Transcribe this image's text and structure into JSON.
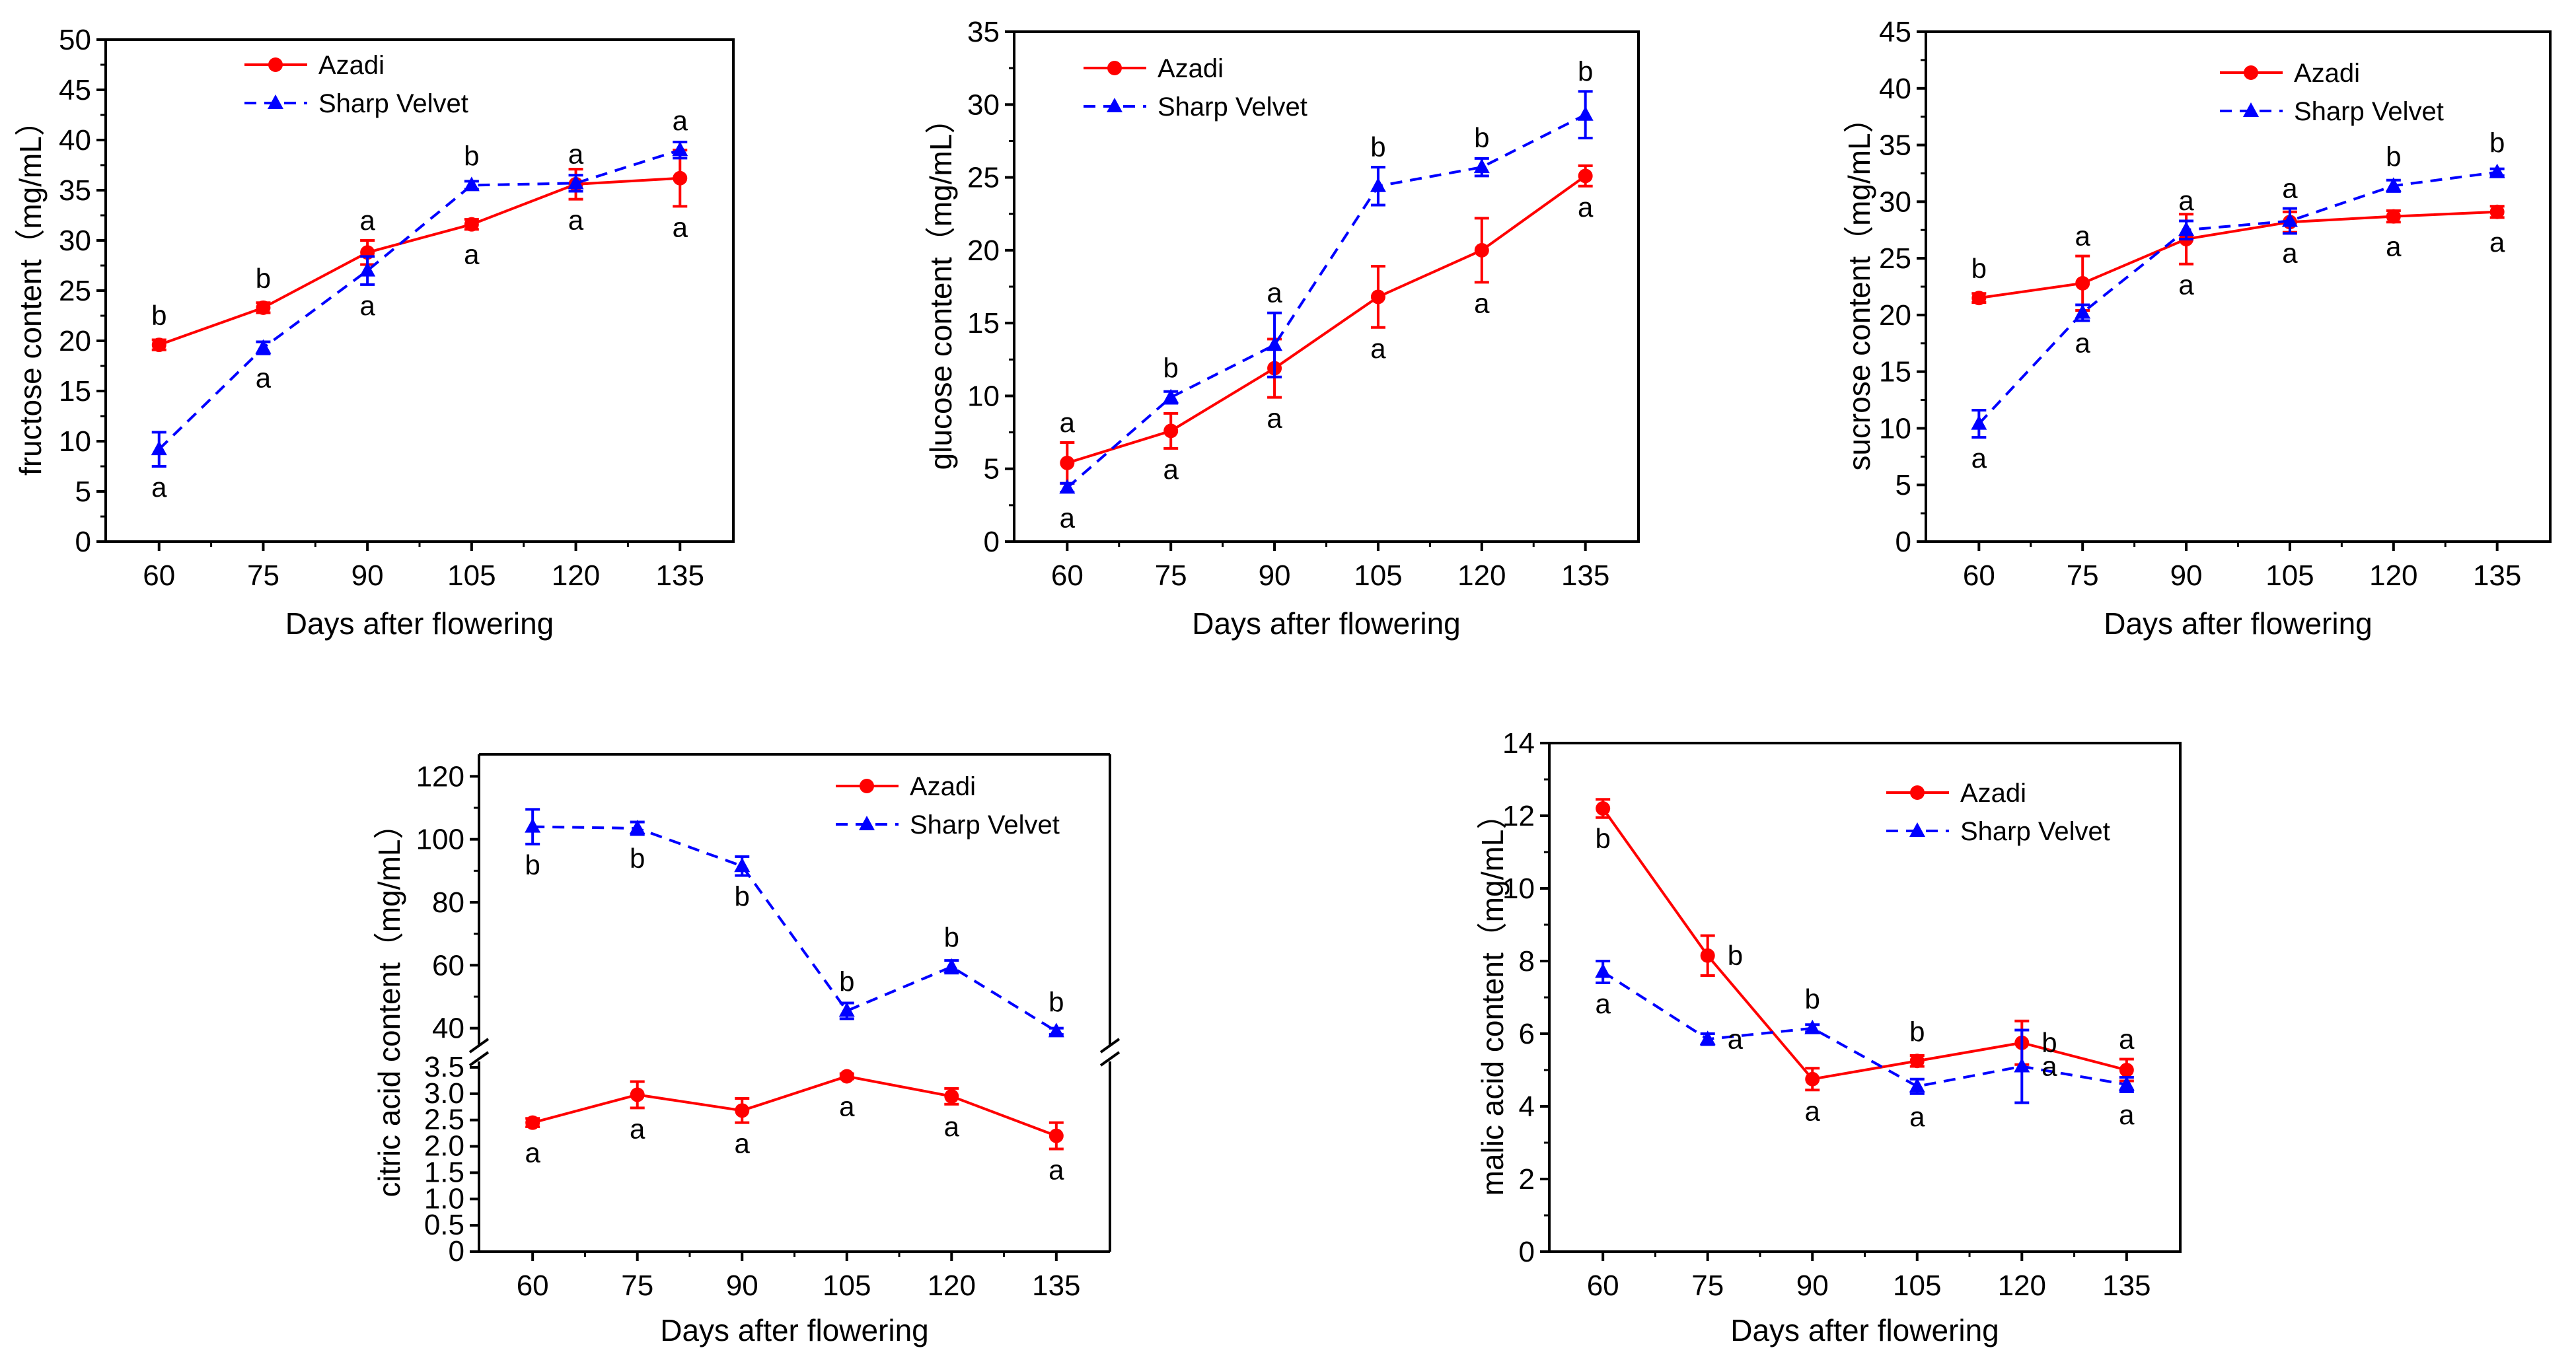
{
  "chart_data": [
    {
      "type": "line",
      "panel": "fructose",
      "title": "",
      "xlabel": "Days after flowering",
      "ylabel": "fructose content（mg/mL）",
      "x": [
        60,
        75,
        90,
        105,
        120,
        135
      ],
      "x_ticks": [
        "60",
        "75",
        "90",
        "105",
        "120",
        "135"
      ],
      "ylim": [
        0,
        50
      ],
      "y_ticks": [
        0,
        5,
        10,
        15,
        20,
        25,
        30,
        35,
        40,
        45,
        50
      ],
      "y_tick_labels": [
        "0",
        "5",
        "10",
        "15",
        "20",
        "25",
        "30",
        "35",
        "40",
        "45",
        "50"
      ],
      "legend": "top-left",
      "series": [
        {
          "name": "Azadi",
          "color": "#ff0000",
          "marker": "circle",
          "line": "solid",
          "values": [
            19.6,
            23.3,
            28.8,
            31.6,
            35.6,
            36.2
          ],
          "errors": [
            0.5,
            0.5,
            1.2,
            0.5,
            1.5,
            2.8
          ],
          "labels": [
            "b",
            "b",
            "a",
            "a",
            "a",
            "a"
          ],
          "label_pos": [
            "above",
            "above",
            "above",
            "below",
            "below",
            "below"
          ]
        },
        {
          "name": "Sharp Velvet",
          "color": "#0000ff",
          "marker": "triangle",
          "line": "dashed",
          "values": [
            9.2,
            19.3,
            27.0,
            35.5,
            35.7,
            39.0
          ],
          "errors": [
            1.7,
            0.6,
            1.4,
            0.4,
            0.8,
            0.8
          ],
          "labels": [
            "a",
            "a",
            "a",
            "b",
            "a",
            "a"
          ],
          "label_pos": [
            "below",
            "below",
            "below",
            "above",
            "above",
            "above"
          ]
        }
      ]
    },
    {
      "type": "line",
      "panel": "glucose",
      "title": "",
      "xlabel": "Days after flowering",
      "ylabel": "glucose content（mg/mL）",
      "x": [
        60,
        75,
        90,
        105,
        120,
        135
      ],
      "x_ticks": [
        "60",
        "75",
        "90",
        "105",
        "120",
        "135"
      ],
      "ylim": [
        0,
        35
      ],
      "y_ticks": [
        0,
        5,
        10,
        15,
        20,
        25,
        30,
        35
      ],
      "y_tick_labels": [
        "0",
        "5",
        "10",
        "15",
        "20",
        "25",
        "30",
        "35"
      ],
      "legend": "top-left",
      "series": [
        {
          "name": "Azadi",
          "color": "#ff0000",
          "marker": "circle",
          "line": "solid",
          "values": [
            5.4,
            7.6,
            11.9,
            16.8,
            20.0,
            25.1
          ],
          "errors": [
            1.4,
            1.2,
            2.0,
            2.1,
            2.2,
            0.7
          ],
          "labels": [
            "a",
            "a",
            "a",
            "a",
            "a",
            "a"
          ],
          "label_pos": [
            "above",
            "below",
            "below",
            "below",
            "below",
            "below"
          ]
        },
        {
          "name": "Sharp Velvet",
          "color": "#0000ff",
          "marker": "triangle",
          "line": "dashed",
          "values": [
            3.7,
            9.9,
            13.5,
            24.4,
            25.7,
            29.3
          ],
          "errors": [
            0.3,
            0.4,
            2.2,
            1.3,
            0.6,
            1.6
          ],
          "labels": [
            "a",
            "b",
            "a",
            "b",
            "b",
            "b"
          ],
          "label_pos": [
            "below",
            "above",
            "above",
            "above",
            "above",
            "above"
          ]
        }
      ]
    },
    {
      "type": "line",
      "panel": "sucrose",
      "title": "",
      "xlabel": "Days after flowering",
      "ylabel": "sucrose content（mg/mL）",
      "x": [
        60,
        75,
        90,
        105,
        120,
        135
      ],
      "x_ticks": [
        "60",
        "75",
        "90",
        "105",
        "120",
        "135"
      ],
      "ylim": [
        0,
        45
      ],
      "y_ticks": [
        0,
        5,
        10,
        15,
        20,
        25,
        30,
        35,
        40,
        45
      ],
      "y_tick_labels": [
        "0",
        "5",
        "10",
        "15",
        "20",
        "25",
        "30",
        "35",
        "40",
        "45"
      ],
      "legend": "top-right",
      "series": [
        {
          "name": "Azadi",
          "color": "#ff0000",
          "marker": "circle",
          "line": "solid",
          "values": [
            21.5,
            22.8,
            26.7,
            28.2,
            28.7,
            29.1
          ],
          "errors": [
            0.4,
            2.4,
            2.2,
            0.9,
            0.5,
            0.5
          ],
          "labels": [
            "b",
            "a",
            "a",
            "a",
            "a",
            "a"
          ],
          "label_pos": [
            "above",
            "above",
            "below",
            "below",
            "below",
            "below"
          ]
        },
        {
          "name": "Sharp Velvet",
          "color": "#0000ff",
          "marker": "triangle",
          "line": "dashed",
          "values": [
            10.4,
            20.2,
            27.5,
            28.3,
            31.4,
            32.6
          ],
          "errors": [
            1.2,
            0.7,
            0.8,
            1.1,
            0.5,
            0.3
          ],
          "labels": [
            "a",
            "a",
            "a",
            "a",
            "b",
            "b"
          ],
          "label_pos": [
            "below",
            "below",
            "above",
            "above",
            "above",
            "above"
          ]
        }
      ]
    },
    {
      "type": "line",
      "panel": "citric acid",
      "title": "",
      "xlabel": "Days after flowering",
      "ylabel": "citric acid content（mg/mL）",
      "x": [
        60,
        75,
        90,
        105,
        120,
        135
      ],
      "x_ticks": [
        "60",
        "75",
        "90",
        "105",
        "120",
        "135"
      ],
      "y_axis_break": true,
      "ylim_lower": [
        0,
        3.7
      ],
      "ylim_upper": [
        33,
        127
      ],
      "y_ticks_lower": [
        0,
        0.5,
        1.0,
        1.5,
        2.0,
        2.5,
        3.0,
        3.5
      ],
      "y_tick_labels_lower": [
        "0",
        "0.5",
        "1.0",
        "1.5",
        "2.0",
        "2.5",
        "3.0",
        "3.5"
      ],
      "y_ticks_upper": [
        40,
        60,
        80,
        100,
        120
      ],
      "y_tick_labels_upper": [
        "40",
        "60",
        "80",
        "100",
        "120"
      ],
      "legend": "top-right",
      "series": [
        {
          "name": "Azadi",
          "color": "#ff0000",
          "marker": "circle",
          "line": "solid",
          "values": [
            2.45,
            2.98,
            2.68,
            3.33,
            2.95,
            2.2
          ],
          "errors": [
            0.08,
            0.25,
            0.23,
            0.05,
            0.15,
            0.25
          ],
          "labels": [
            "a",
            "a",
            "a",
            "a",
            "a",
            "a"
          ],
          "label_pos": [
            "below",
            "below",
            "below",
            "below",
            "below",
            "below"
          ]
        },
        {
          "name": "Sharp Velvet",
          "color": "#0000ff",
          "marker": "triangle",
          "line": "dashed",
          "values": [
            104,
            103.5,
            91.5,
            45.5,
            59.5,
            39
          ],
          "errors": [
            5.5,
            2,
            3,
            2.5,
            2,
            1
          ],
          "labels": [
            "b",
            "b",
            "b",
            "b",
            "b",
            "b"
          ],
          "label_pos": [
            "below",
            "below",
            "below",
            "above",
            "above",
            "above"
          ]
        }
      ]
    },
    {
      "type": "line",
      "panel": "malic acid",
      "title": "",
      "xlabel": "Days after flowering",
      "ylabel": "malic acid content（mg/mL）",
      "x": [
        60,
        75,
        90,
        105,
        120,
        135
      ],
      "x_ticks": [
        "60",
        "75",
        "90",
        "105",
        "120",
        "135"
      ],
      "ylim": [
        0,
        14
      ],
      "y_ticks": [
        0,
        2,
        4,
        6,
        8,
        10,
        12,
        14
      ],
      "y_tick_labels": [
        "0",
        "2",
        "4",
        "6",
        "8",
        "10",
        "12",
        "14"
      ],
      "legend": "top-right",
      "series": [
        {
          "name": "Azadi",
          "color": "#ff0000",
          "marker": "circle",
          "line": "solid",
          "values": [
            12.2,
            8.15,
            4.75,
            5.25,
            5.75,
            5.0
          ],
          "errors": [
            0.25,
            0.55,
            0.3,
            0.15,
            0.6,
            0.3
          ],
          "labels": [
            "b",
            "b",
            "a",
            "b",
            "b",
            "a"
          ],
          "label_pos": [
            "below",
            "right",
            "below",
            "above",
            "right",
            "above"
          ]
        },
        {
          "name": "Sharp Velvet",
          "color": "#0000ff",
          "marker": "triangle",
          "line": "dashed",
          "values": [
            7.7,
            5.85,
            6.15,
            4.55,
            5.1,
            4.6
          ],
          "errors": [
            0.3,
            0.15,
            0.1,
            0.2,
            1.0,
            0.2
          ],
          "labels": [
            "a",
            "a",
            "b",
            "a",
            "a",
            "a"
          ],
          "label_pos": [
            "below",
            "right",
            "above",
            "below",
            "right",
            "below"
          ]
        }
      ]
    }
  ]
}
